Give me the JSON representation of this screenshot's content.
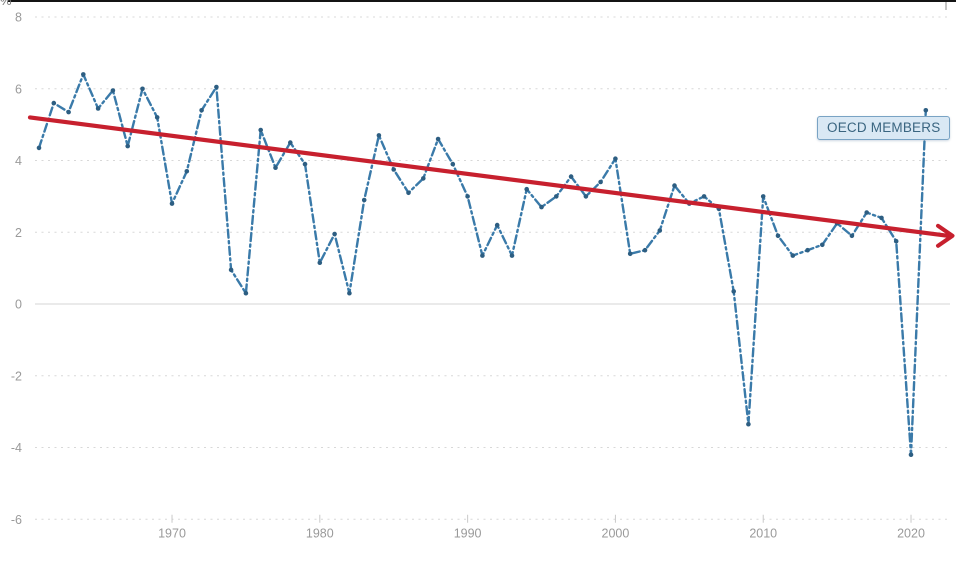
{
  "page": {
    "axis_unit_partial_glyph": "%"
  },
  "chart": {
    "label_box": {
      "text": "OECD MEMBERS"
    }
  },
  "chart_data": {
    "type": "line",
    "title": "",
    "series": [
      {
        "name": "OECD MEMBERS",
        "x": [
          1961,
          1962,
          1963,
          1964,
          1965,
          1966,
          1967,
          1968,
          1969,
          1970,
          1971,
          1972,
          1973,
          1974,
          1975,
          1976,
          1977,
          1978,
          1979,
          1980,
          1981,
          1982,
          1983,
          1984,
          1985,
          1986,
          1987,
          1988,
          1989,
          1990,
          1991,
          1992,
          1993,
          1994,
          1995,
          1996,
          1997,
          1998,
          1999,
          2000,
          2001,
          2002,
          2003,
          2004,
          2005,
          2006,
          2007,
          2008,
          2009,
          2010,
          2011,
          2012,
          2013,
          2014,
          2015,
          2016,
          2017,
          2018,
          2019,
          2020,
          2021
        ],
        "values": [
          4.35,
          5.6,
          5.35,
          6.4,
          5.45,
          5.95,
          4.4,
          6.0,
          5.2,
          2.8,
          3.7,
          5.4,
          6.05,
          0.95,
          0.3,
          4.85,
          3.8,
          4.5,
          3.9,
          1.15,
          1.95,
          0.3,
          2.9,
          4.7,
          3.75,
          3.1,
          3.5,
          4.6,
          3.9,
          3.0,
          1.35,
          2.2,
          1.35,
          3.2,
          2.7,
          3.0,
          3.55,
          3.0,
          3.4,
          4.05,
          1.4,
          1.5,
          2.05,
          3.3,
          2.8,
          3.0,
          2.65,
          0.35,
          -3.35,
          3.0,
          1.9,
          1.35,
          1.5,
          1.65,
          2.25,
          1.9,
          2.55,
          2.4,
          1.75,
          -4.2,
          5.4
        ]
      }
    ],
    "trend": {
      "start_value": 5.2,
      "end_value": 1.9,
      "style": "solid-arrow"
    },
    "y_ticks": [
      8,
      6,
      4,
      2,
      0,
      -2,
      -4,
      -6
    ],
    "x_ticks": [
      1970,
      1980,
      1990,
      2000,
      2010,
      2020
    ],
    "ylim": [
      -6.8,
      8.5
    ],
    "xlim": [
      1960.4,
      2023
    ],
    "grid": "horizontal dashed, zero line solid",
    "legend_position": "floating label box at right, over year 2021",
    "line_color": "#3a7aa9",
    "marker_color": "#2d5e82",
    "trend_color": "#c7202e",
    "tick_label_color": "#9a9a9a",
    "label_box_bg": "#d9e8f4",
    "label_box_border": "#79a3c4"
  }
}
